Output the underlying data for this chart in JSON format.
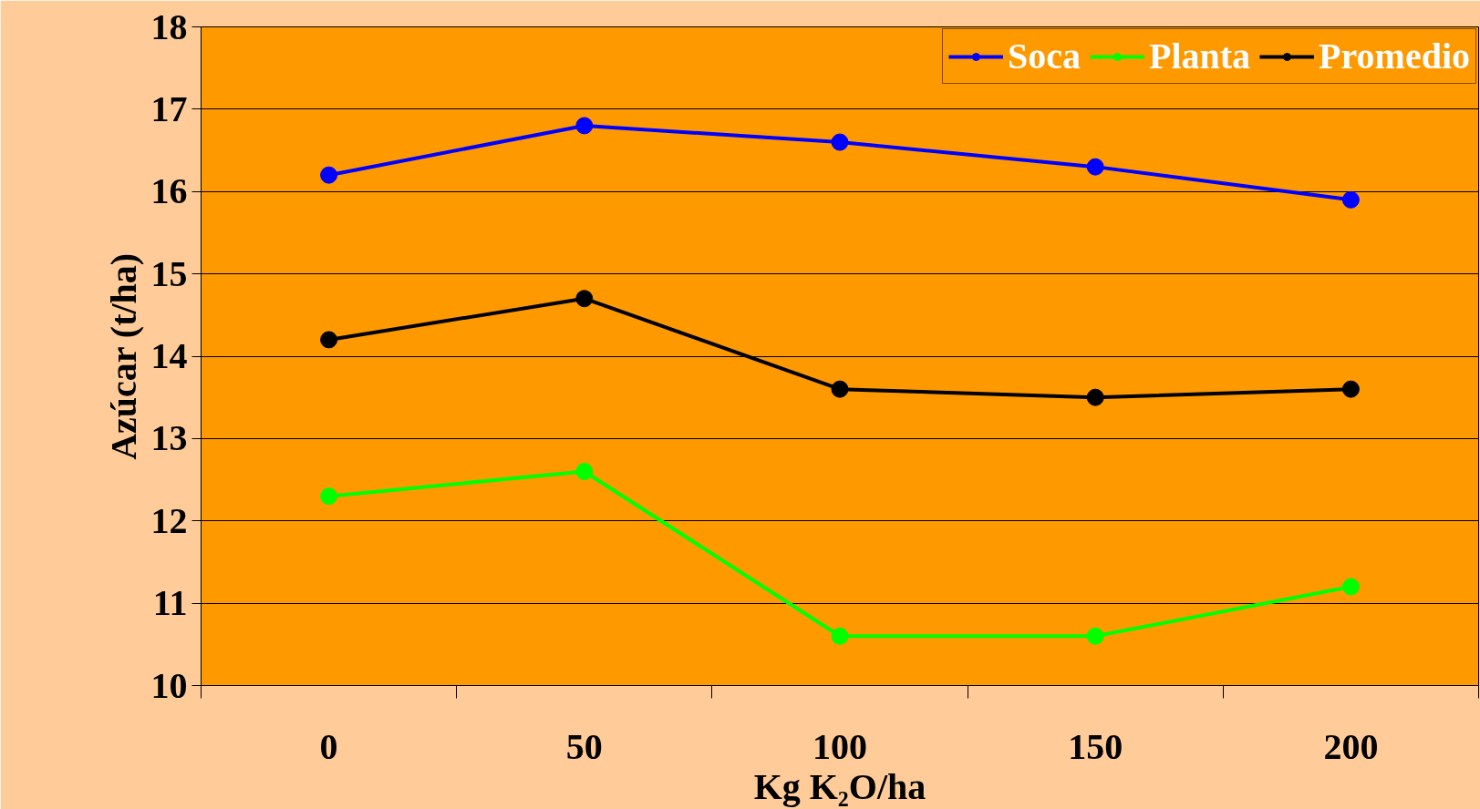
{
  "chart_data": {
    "type": "line",
    "xlabel": "Kg K₂O/ha",
    "ylabel": "Azúcar (t/ha)",
    "categories": [
      "0",
      "50",
      "100",
      "150",
      "200"
    ],
    "series": [
      {
        "name": "Soca",
        "color": "#0000ff",
        "values": [
          16.2,
          16.8,
          16.6,
          16.3,
          15.9
        ]
      },
      {
        "name": "Planta",
        "color": "#00ff00",
        "values": [
          12.3,
          12.6,
          10.6,
          10.6,
          11.2
        ]
      },
      {
        "name": "Promedio",
        "color": "#000000",
        "values": [
          14.2,
          14.7,
          13.6,
          13.5,
          13.6
        ]
      }
    ],
    "ylim": [
      10,
      18
    ],
    "yticks": [
      10,
      11,
      12,
      13,
      14,
      15,
      16,
      17,
      18
    ],
    "grid": "y",
    "legend": "top right",
    "marker": "circle",
    "line_style": "solid"
  }
}
